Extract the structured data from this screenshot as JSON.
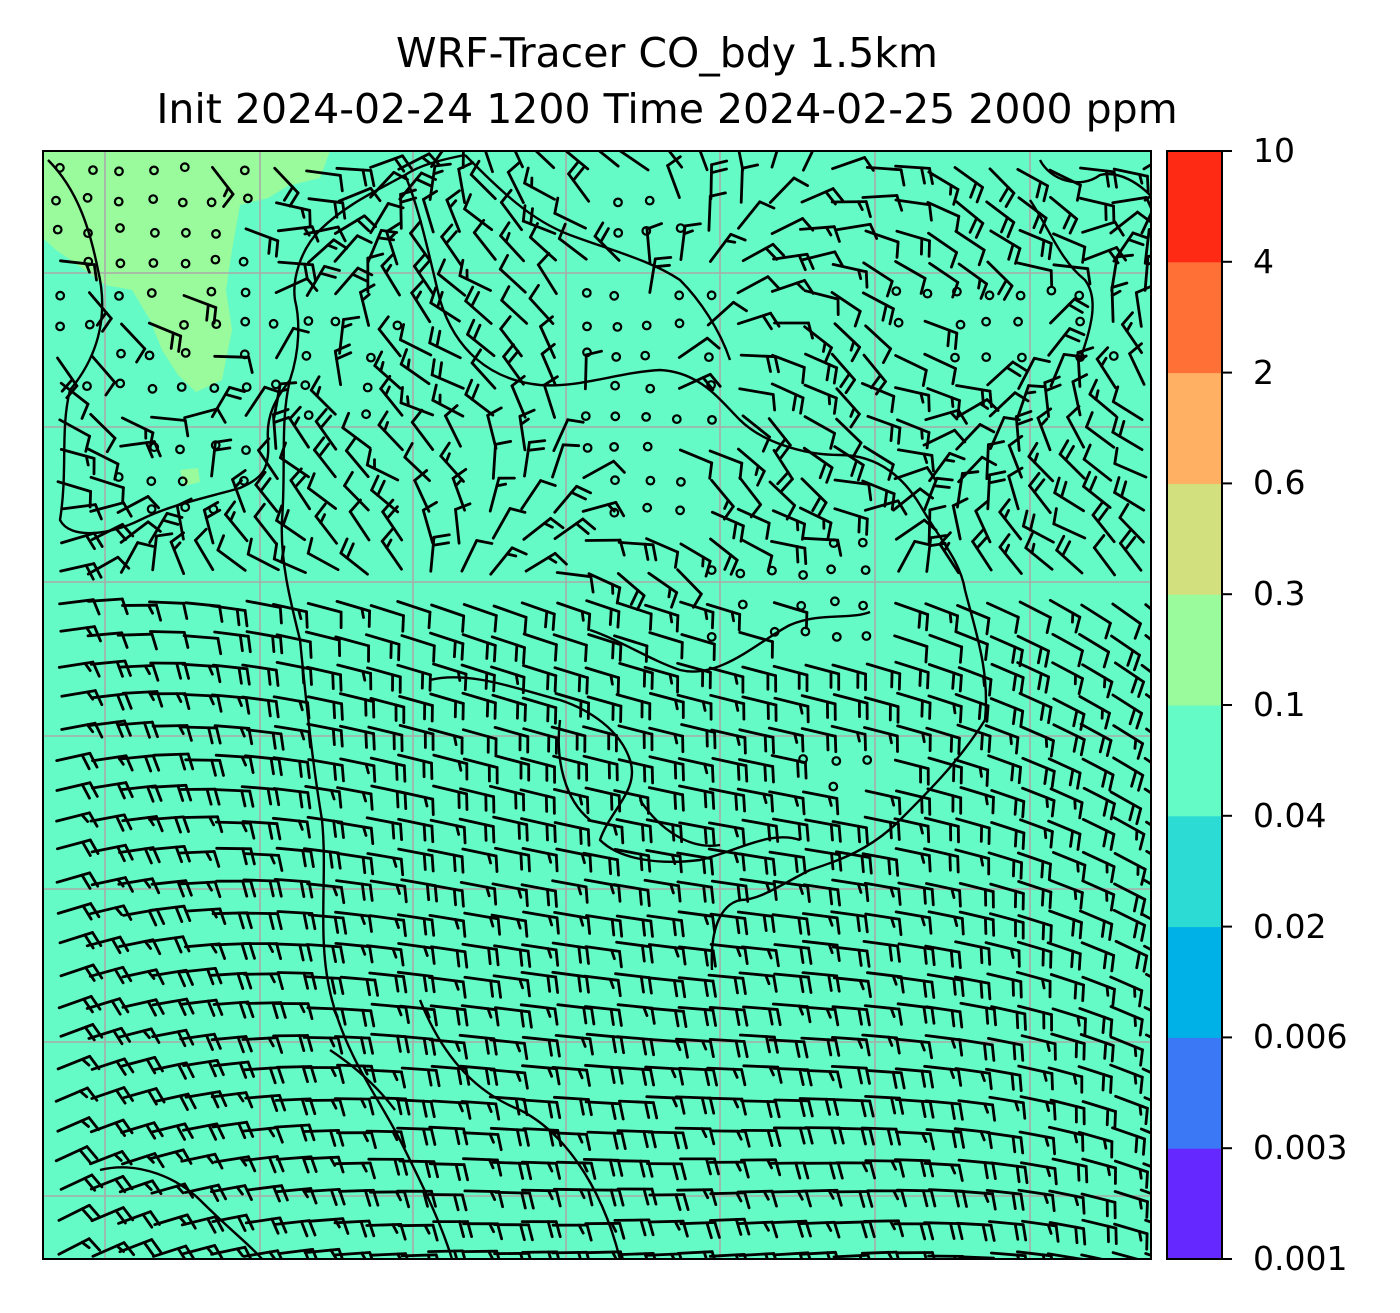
{
  "title": {
    "line1": "WRF-Tracer CO_bdy 1.5km",
    "line2": "Init 2024-02-24 1200 Time 2024-02-25 2000 ppm"
  },
  "colorbar": {
    "levels": [
      "0.001",
      "0.003",
      "0.006",
      "0.02",
      "0.04",
      "0.1",
      "0.3",
      "0.6",
      "2",
      "4",
      "10"
    ],
    "colors": [
      "#6528ff",
      "#3a78f5",
      "#00b1e8",
      "#2cdcd4",
      "#64fbc6",
      "#99fb9b",
      "#d2e07e",
      "#ffb062",
      "#ff7037",
      "#ff2a14"
    ]
  },
  "map": {
    "fill_color": "#64fbc6",
    "patch_color": "#99fb9b",
    "gridline_color": "#aaaaaa",
    "barb_color": "#000000"
  }
}
